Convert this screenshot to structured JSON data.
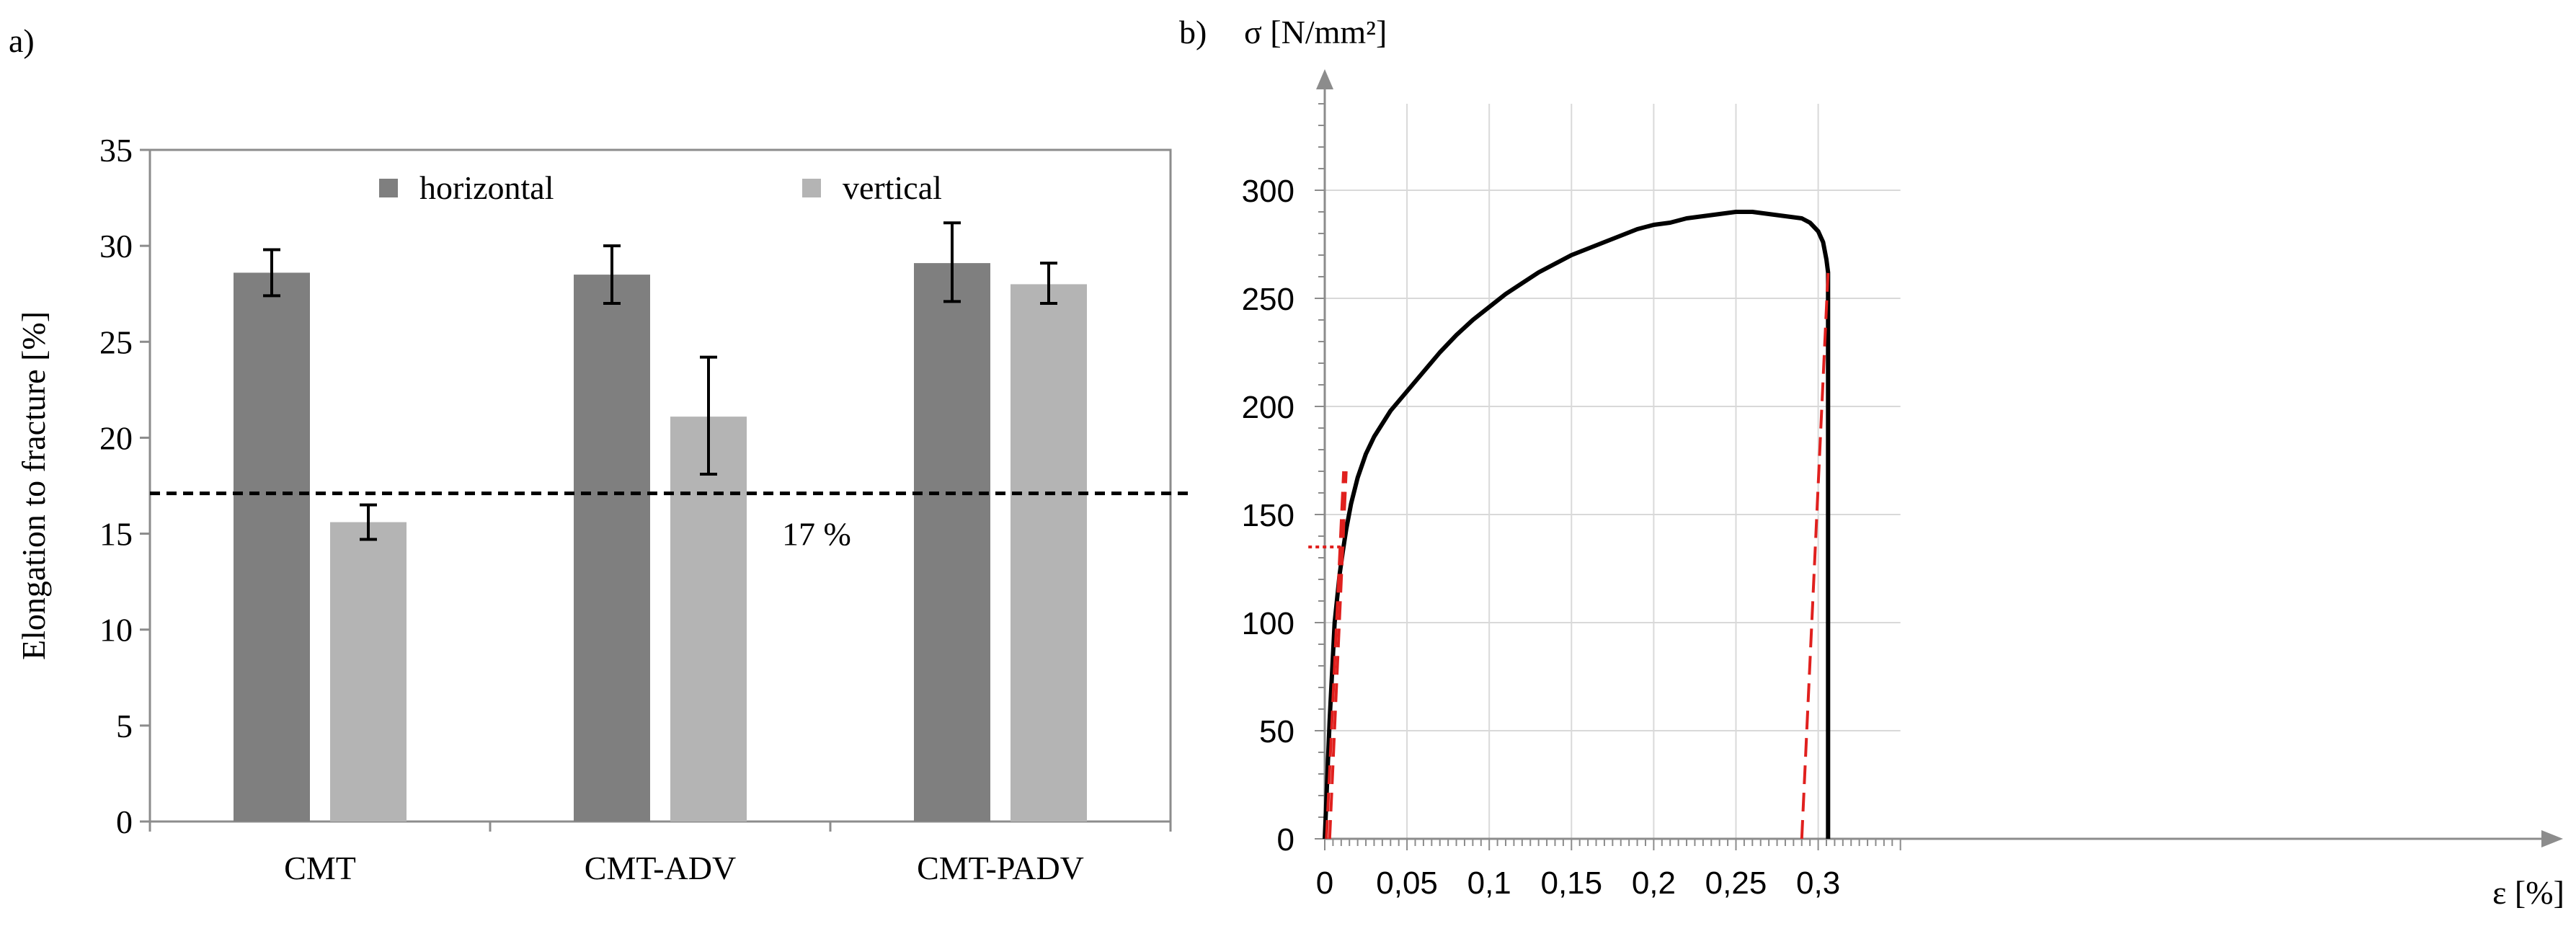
{
  "chart_data": [
    {
      "panel_label": "a)",
      "type": "bar",
      "categories": [
        "CMT",
        "CMT-ADV",
        "CMT-PADV"
      ],
      "series": [
        {
          "name": "horizontal",
          "color": "#7f7f7f",
          "values": [
            28.6,
            28.5,
            29.1
          ],
          "error_low": [
            27.4,
            27.0,
            27.1
          ],
          "error_high": [
            29.8,
            30.0,
            31.2
          ]
        },
        {
          "name": "vertical",
          "color": "#b4b4b4",
          "values": [
            15.6,
            21.1,
            28.0
          ],
          "error_low": [
            14.7,
            18.1,
            27.0
          ],
          "error_high": [
            16.5,
            24.2,
            29.1
          ]
        }
      ],
      "ylabel": "Elongation to fracture [%]",
      "xlabel": "",
      "ylim": [
        0,
        35
      ],
      "yticks": [
        "0",
        "5",
        "10",
        "15",
        "20",
        "25",
        "30",
        "35"
      ],
      "reference_line": {
        "value": 17.1,
        "label": "17 %"
      },
      "legend_position": "top"
    },
    {
      "panel_label": "b)",
      "type": "line",
      "ylabel": "σ [N/mm²]",
      "xlabel": "ε [%]",
      "xlim": [
        0,
        0.35
      ],
      "ylim": [
        0,
        340
      ],
      "xticks": [
        "0",
        "0,05",
        "0,1",
        "0,15",
        "0,2",
        "0,25",
        "0,3"
      ],
      "xtick_values": [
        0,
        0.05,
        0.1,
        0.15,
        0.2,
        0.25,
        0.3
      ],
      "yticks": [
        "0",
        "50",
        "100",
        "150",
        "200",
        "250",
        "300"
      ],
      "ytick_values": [
        0,
        50,
        100,
        150,
        200,
        250,
        300
      ],
      "grid": true,
      "series": [
        {
          "name": "stress-strain curve",
          "color": "#000000",
          "x": [
            0,
            0.003,
            0.006,
            0.009,
            0.011,
            0.013,
            0.016,
            0.02,
            0.025,
            0.03,
            0.04,
            0.05,
            0.06,
            0.07,
            0.08,
            0.09,
            0.1,
            0.11,
            0.12,
            0.13,
            0.14,
            0.15,
            0.16,
            0.17,
            0.18,
            0.19,
            0.2,
            0.21,
            0.22,
            0.23,
            0.24,
            0.25,
            0.26,
            0.27,
            0.28,
            0.29,
            0.295,
            0.3,
            0.303,
            0.305,
            0.306,
            0.306
          ],
          "y": [
            0,
            55,
            100,
            122,
            133,
            143,
            155,
            167,
            178,
            186,
            198,
            207,
            216,
            225,
            233,
            240,
            246,
            252,
            257,
            262,
            266,
            270,
            273,
            276,
            279,
            282,
            284,
            285,
            287,
            288,
            289,
            290,
            290,
            289,
            288,
            287,
            285,
            281,
            276,
            268,
            262,
            0
          ]
        },
        {
          "name": "elastic slope line 1",
          "color": "#e0201e",
          "dashed": true,
          "x": [
            0.001,
            0.0115
          ],
          "y": [
            0,
            170
          ]
        },
        {
          "name": "elastic slope line 2",
          "color": "#e0201e",
          "dashed": true,
          "x": [
            0.003,
            0.013
          ],
          "y": [
            0,
            170
          ]
        },
        {
          "name": "unloading line",
          "color": "#e0201e",
          "dashed": true,
          "x": [
            0.29,
            0.306
          ],
          "y": [
            0,
            262
          ]
        },
        {
          "name": "yield marker",
          "color": "#e0201e",
          "dotted": true,
          "x": [
            -0.01,
            0.012
          ],
          "y": [
            135,
            135
          ]
        }
      ]
    }
  ]
}
